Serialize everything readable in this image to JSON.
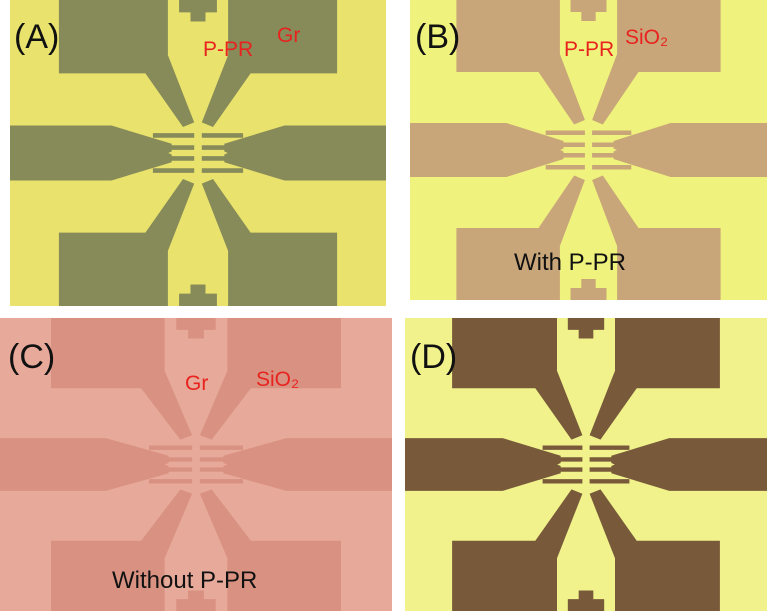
{
  "panels": [
    {
      "label": "(A)",
      "annotations": [
        "P-PR",
        "Gr"
      ]
    },
    {
      "label": "(B)",
      "annotations": [
        "P-PR",
        "SiO₂"
      ],
      "caption": "With P-PR"
    },
    {
      "label": "(C)",
      "annotations": [
        "Gr",
        "SiO₂"
      ],
      "caption": "Without P-PR"
    },
    {
      "label": "(D)"
    }
  ]
}
